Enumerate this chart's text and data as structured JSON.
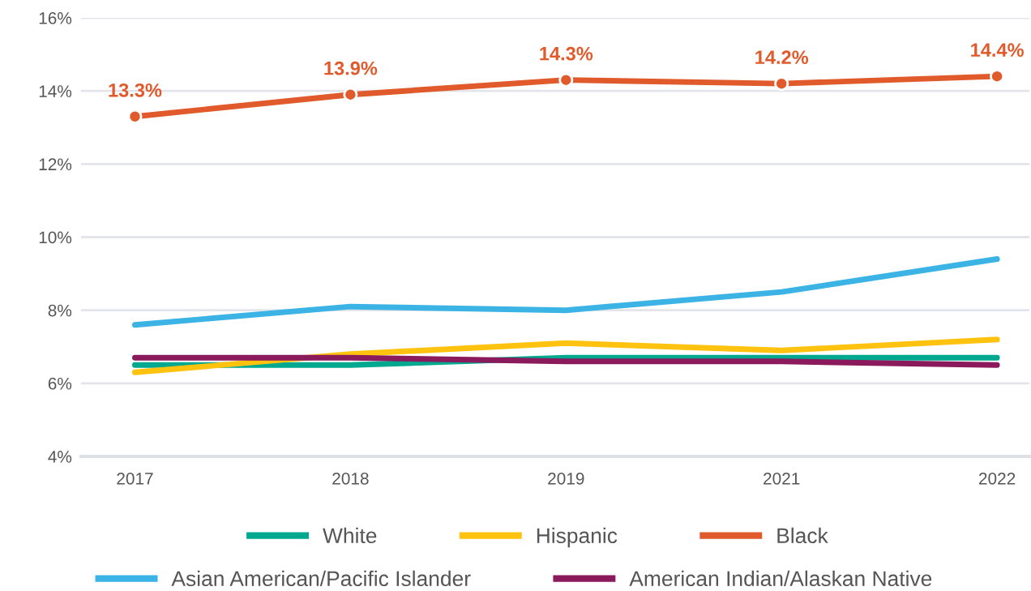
{
  "chart_data": {
    "type": "line",
    "categories": [
      "2017",
      "2018",
      "2019",
      "2021",
      "2022"
    ],
    "ylim": [
      4,
      16
    ],
    "yticks": [
      {
        "value": 4,
        "label": "4%"
      },
      {
        "value": 6,
        "label": "6%"
      },
      {
        "value": 8,
        "label": "8%"
      },
      {
        "value": 10,
        "label": "10%"
      },
      {
        "value": 12,
        "label": "12%"
      },
      {
        "value": 14,
        "label": "14%"
      },
      {
        "value": 16,
        "label": "16%"
      }
    ],
    "grid": "y",
    "legend": "bottom",
    "marker": "none",
    "line_style": "solid",
    "series": [
      {
        "name": "White",
        "color": "#00a88f",
        "values": [
          6.5,
          6.5,
          6.7,
          6.7,
          6.7
        ]
      },
      {
        "name": "Hispanic",
        "color": "#ffc20e",
        "values": [
          6.3,
          6.8,
          7.1,
          6.9,
          7.2
        ]
      },
      {
        "name": "Black",
        "color": "#e05a2b",
        "values": [
          13.3,
          13.9,
          14.3,
          14.2,
          14.4
        ],
        "marker": "circle",
        "value_labels": [
          "13.3%",
          "13.9%",
          "14.3%",
          "14.2%",
          "14.4%"
        ]
      },
      {
        "name": "Asian American/Pacific Islander",
        "color": "#3bb4e5",
        "values": [
          7.6,
          8.1,
          8.0,
          8.5,
          9.4
        ]
      },
      {
        "name": "American Indian/Alaskan Native",
        "color": "#8b1a5c",
        "values": [
          6.7,
          6.7,
          6.6,
          6.6,
          6.5
        ]
      }
    ]
  }
}
